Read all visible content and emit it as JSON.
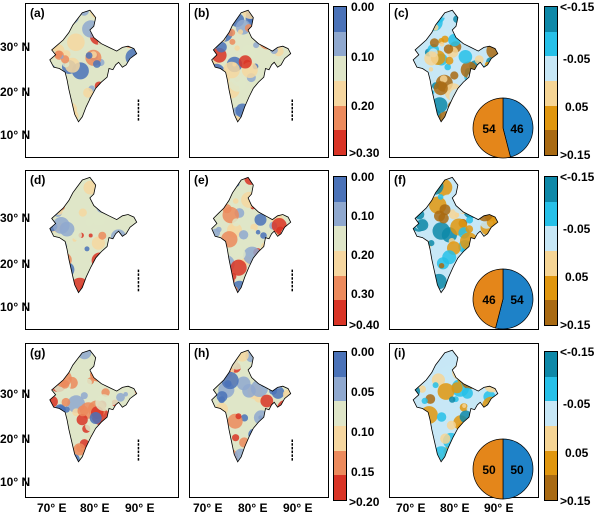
{
  "panels": [
    {
      "label": "(a)",
      "scheme": "seq6"
    },
    {
      "label": "(b)",
      "scheme": "seq6"
    },
    {
      "label": "(c)",
      "scheme": "div6",
      "pie": {
        "left": "54",
        "right": "46",
        "left_share": 54
      }
    },
    {
      "label": "(d)",
      "scheme": "seq6"
    },
    {
      "label": "(e)",
      "scheme": "seq6"
    },
    {
      "label": "(f)",
      "scheme": "div6",
      "pie": {
        "left": "46",
        "right": "54",
        "left_share": 46
      }
    },
    {
      "label": "(g)",
      "scheme": "seq6"
    },
    {
      "label": "(h)",
      "scheme": "seq6"
    },
    {
      "label": "(i)",
      "scheme": "div6",
      "pie": {
        "left": "50",
        "right": "50",
        "left_share": 50
      }
    }
  ],
  "lat_labels": [
    "30° N",
    "20° N",
    "10° N"
  ],
  "lon_labels": [
    "70° E",
    "80° E",
    "90° E"
  ],
  "colorbars": {
    "row1_seq": {
      "labels": [
        "0.00",
        "0.10",
        "0.20",
        ">0.30"
      ]
    },
    "row2_seq": {
      "labels": [
        "0.00",
        "0.10",
        "0.20",
        "0.30",
        ">0.40"
      ]
    },
    "row3_seq": {
      "labels": [
        "0.00",
        "0.05",
        "0.10",
        "0.15",
        ">0.20"
      ]
    },
    "div": {
      "labels": [
        "<-0.15",
        "-0.05",
        "0.05",
        ">0.15"
      ]
    }
  },
  "colors": {
    "seq": [
      "#4a72b8",
      "#8fa8cf",
      "#dfe6c8",
      "#f6d7a0",
      "#ec8a5c",
      "#d93426"
    ],
    "div": [
      "#0d88a8",
      "#26c0e8",
      "#c7e7f6",
      "#f6d595",
      "#e0960e",
      "#a96a12"
    ],
    "pie_left": "#e4861a",
    "pie_right": "#1e82c8"
  }
}
